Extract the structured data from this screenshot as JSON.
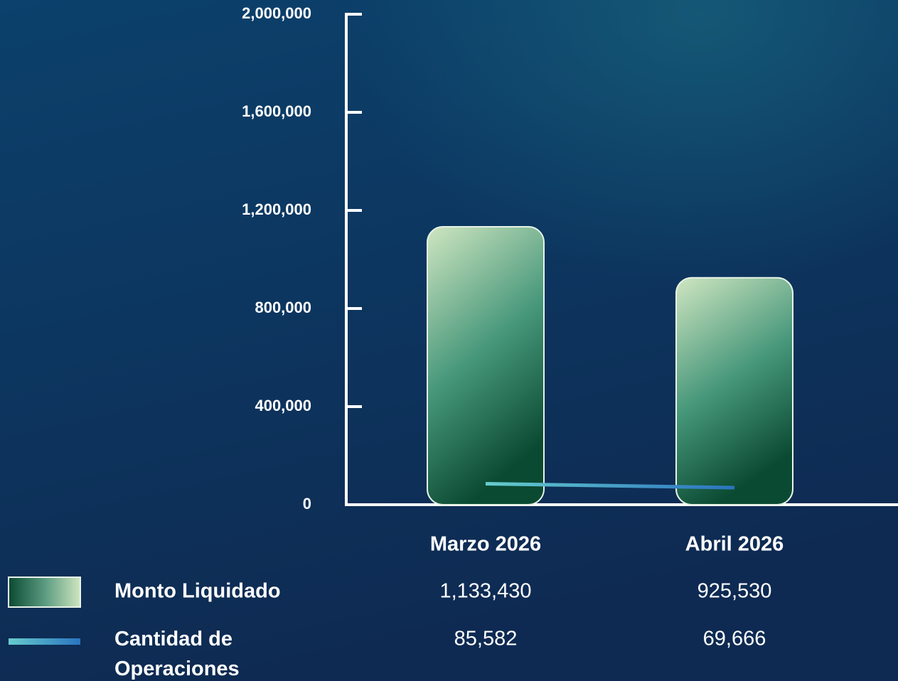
{
  "chart_data": {
    "type": "bar",
    "categories": [
      "Marzo 2026",
      "Abril  2026"
    ],
    "series": [
      {
        "name": "Monto Liquidado",
        "type": "bar",
        "color": "#2f8a62",
        "values": [
          1133430,
          925530
        ],
        "value_labels": [
          "1,133,430",
          "925,530"
        ]
      },
      {
        "name": "Cantidad de Operaciones",
        "type": "line",
        "color": "#3aa6c9",
        "values": [
          85582,
          69666
        ],
        "value_labels": [
          "85,582",
          "69,666"
        ]
      }
    ],
    "ylim": [
      0,
      2000000
    ],
    "yticks": [
      0,
      {
        "value": 400000,
        "label": "400,000"
      },
      {
        "value": 800000,
        "label": "800,000"
      },
      {
        "value": 1200000,
        "label": "1,200,000"
      },
      {
        "value": 1600000,
        "label": "1,600,000"
      },
      {
        "value": 2000000,
        "label": "2,000,000"
      }
    ],
    "grid": false
  }
}
